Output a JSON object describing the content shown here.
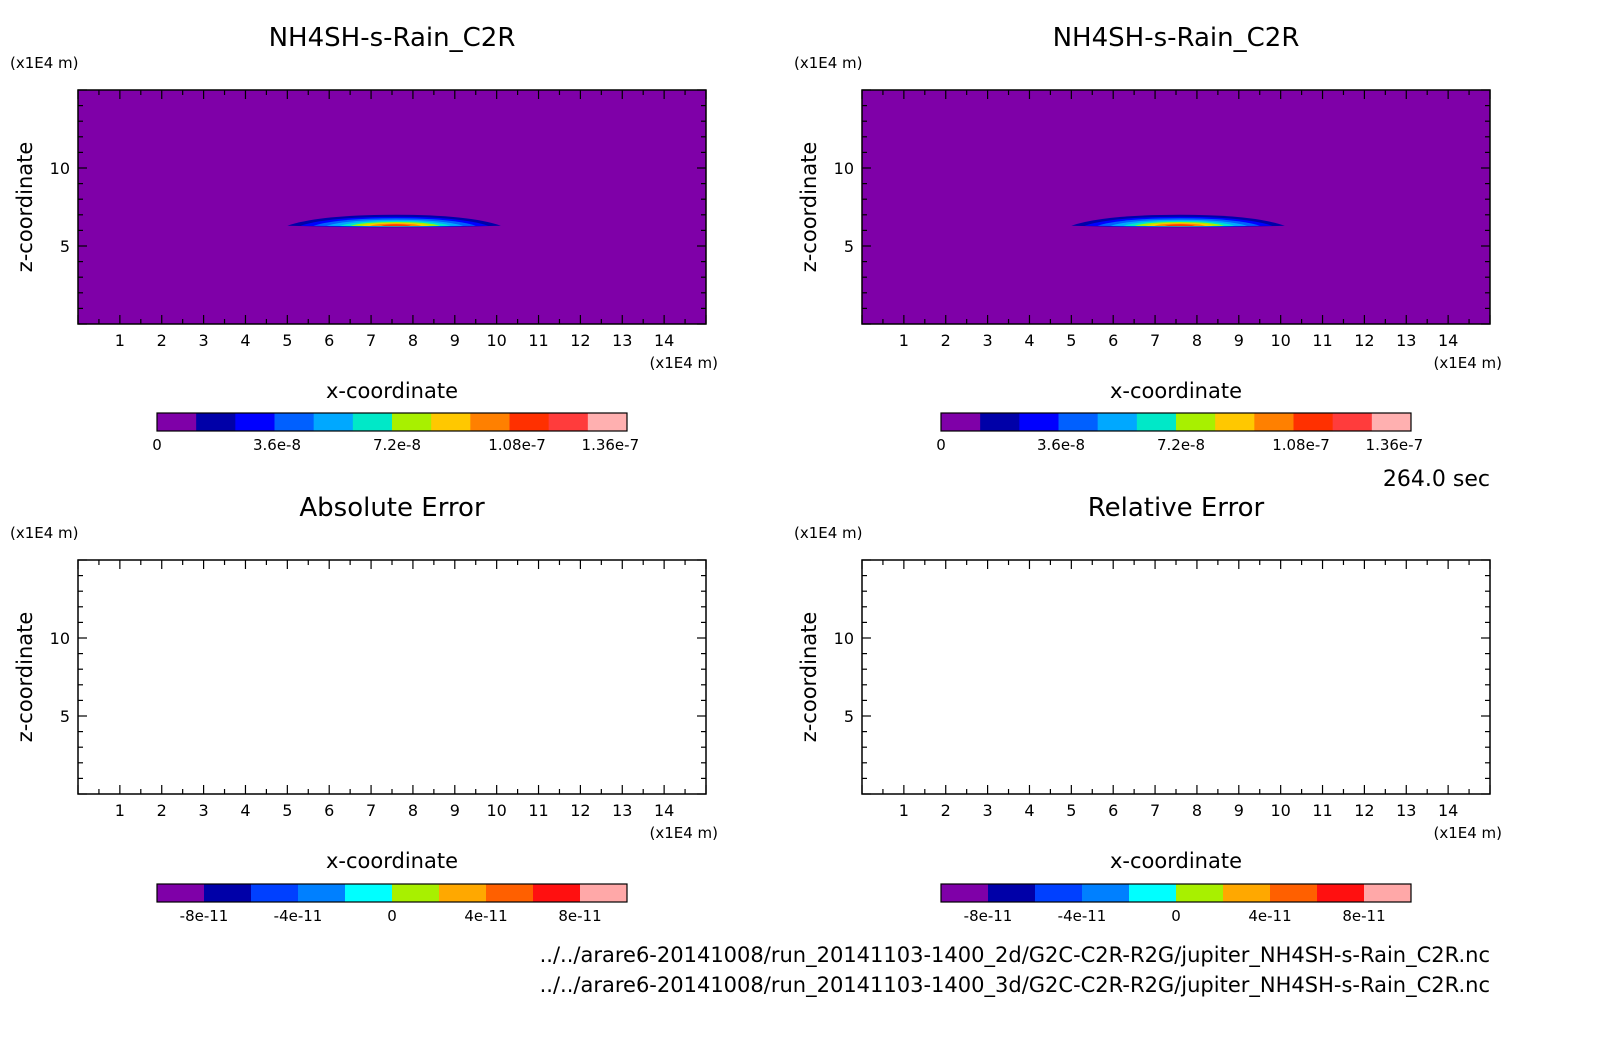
{
  "time_label": "264.0 sec",
  "file_paths": [
    "../../arare6-20141008/run_20141103-1400_2d/G2C-C2R-R2G/jupiter_NH4SH-s-Rain_C2R.nc",
    "../../arare6-20141008/run_20141103-1400_3d/G2C-C2R-R2G/jupiter_NH4SH-s-Rain_C2R.nc"
  ],
  "colors": {
    "field_background": "#7f00a8",
    "field_levels": [
      "#7f00a8",
      "#0000a8",
      "#0000ff",
      "#0060ff",
      "#00a8ff",
      "#00e8c8",
      "#a8f000",
      "#ffc800",
      "#ff8000",
      "#ff3000",
      "#ff3c3c",
      "#ffb0b0"
    ],
    "error_levels": [
      "#7f00a8",
      "#0000a8",
      "#0040ff",
      "#0080ff",
      "#00ffff",
      "#a8f000",
      "#ffa800",
      "#ff6000",
      "#ff1010",
      "#ffa8a8"
    ]
  },
  "chart_data": [
    {
      "type": "heatmap",
      "title": "NH4SH-s-Rain_C2R",
      "xlabel": "x-coordinate",
      "ylabel": "z-coordinate",
      "x_unit": "(x1E4 m)",
      "y_unit": "(x1E4 m)",
      "xlim": [
        0,
        15
      ],
      "ylim": [
        0,
        15
      ],
      "xticks": [
        1,
        2,
        3,
        4,
        5,
        6,
        7,
        8,
        9,
        10,
        11,
        12,
        13,
        14
      ],
      "yticks": [
        5,
        10
      ],
      "levels": [
        0,
        3.6e-08,
        7.2e-08,
        1.08e-07,
        1.36e-07
      ],
      "colorbar_ticks": [
        "0",
        "3.6e-8",
        "7.2e-8",
        "1.08e-7",
        "1.36e-7"
      ],
      "colorbar_tick_values": [
        0,
        3.6e-08,
        7.2e-08,
        1.08e-07,
        1.36e-07
      ],
      "colorbar_range": [
        0,
        1.41e-07
      ],
      "feature": {
        "x_range": [
          5.0,
          10.1
        ],
        "z_range": [
          6.3,
          7.0
        ],
        "peak_x": 7.6,
        "peak_z": 6.45,
        "peak_value": 1.15e-07
      }
    },
    {
      "type": "heatmap",
      "title": "NH4SH-s-Rain_C2R",
      "xlabel": "x-coordinate",
      "ylabel": "z-coordinate",
      "x_unit": "(x1E4 m)",
      "y_unit": "(x1E4 m)",
      "xlim": [
        0,
        15
      ],
      "ylim": [
        0,
        15
      ],
      "xticks": [
        1,
        2,
        3,
        4,
        5,
        6,
        7,
        8,
        9,
        10,
        11,
        12,
        13,
        14
      ],
      "yticks": [
        5,
        10
      ],
      "levels": [
        0,
        3.6e-08,
        7.2e-08,
        1.08e-07,
        1.36e-07
      ],
      "colorbar_ticks": [
        "0",
        "3.6e-8",
        "7.2e-8",
        "1.08e-7",
        "1.36e-7"
      ],
      "colorbar_tick_values": [
        0,
        3.6e-08,
        7.2e-08,
        1.08e-07,
        1.36e-07
      ],
      "colorbar_range": [
        0,
        1.41e-07
      ],
      "feature": {
        "x_range": [
          5.0,
          10.1
        ],
        "z_range": [
          6.3,
          7.0
        ],
        "peak_x": 7.6,
        "peak_z": 6.45,
        "peak_value": 1.15e-07
      }
    },
    {
      "type": "heatmap",
      "title": "Absolute Error",
      "xlabel": "x-coordinate",
      "ylabel": "z-coordinate",
      "x_unit": "(x1E4 m)",
      "y_unit": "(x1E4 m)",
      "xlim": [
        0,
        15
      ],
      "ylim": [
        0,
        15
      ],
      "xticks": [
        1,
        2,
        3,
        4,
        5,
        6,
        7,
        8,
        9,
        10,
        11,
        12,
        13,
        14
      ],
      "yticks": [
        5,
        10
      ],
      "colorbar_ticks": [
        "-8e-11",
        "-4e-11",
        "0",
        "4e-11",
        "8e-11"
      ],
      "colorbar_tick_values": [
        -8e-11,
        -4e-11,
        0,
        4e-11,
        8e-11
      ],
      "colorbar_range": [
        -1e-10,
        1e-10
      ],
      "field_value": 0
    },
    {
      "type": "heatmap",
      "title": "Relative Error",
      "xlabel": "x-coordinate",
      "ylabel": "z-coordinate",
      "x_unit": "(x1E4 m)",
      "y_unit": "(x1E4 m)",
      "xlim": [
        0,
        15
      ],
      "ylim": [
        0,
        15
      ],
      "xticks": [
        1,
        2,
        3,
        4,
        5,
        6,
        7,
        8,
        9,
        10,
        11,
        12,
        13,
        14
      ],
      "yticks": [
        5,
        10
      ],
      "colorbar_ticks": [
        "-8e-11",
        "-4e-11",
        "0",
        "4e-11",
        "8e-11"
      ],
      "colorbar_tick_values": [
        -8e-11,
        -4e-11,
        0,
        4e-11,
        8e-11
      ],
      "colorbar_range": [
        -1e-10,
        1e-10
      ],
      "field_value": 0
    }
  ]
}
